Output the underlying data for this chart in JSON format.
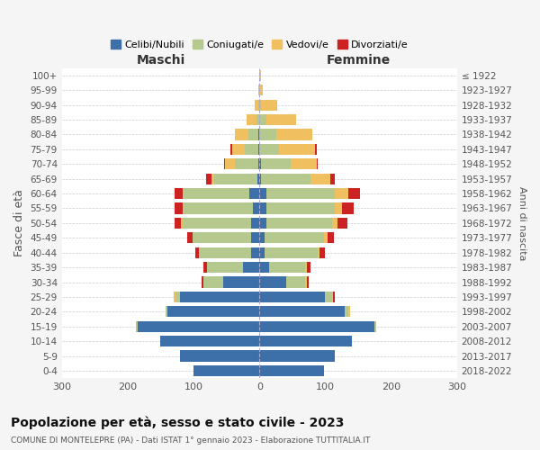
{
  "age_groups": [
    "100+",
    "95-99",
    "90-94",
    "85-89",
    "80-84",
    "75-79",
    "70-74",
    "65-69",
    "60-64",
    "55-59",
    "50-54",
    "45-49",
    "40-44",
    "35-39",
    "30-34",
    "25-29",
    "20-24",
    "15-19",
    "10-14",
    "5-9",
    "0-4"
  ],
  "birth_years": [
    "≤ 1922",
    "1923-1927",
    "1928-1932",
    "1933-1937",
    "1938-1942",
    "1943-1947",
    "1948-1952",
    "1953-1957",
    "1958-1962",
    "1963-1967",
    "1968-1972",
    "1973-1977",
    "1978-1982",
    "1983-1987",
    "1988-1992",
    "1993-1997",
    "1998-2002",
    "2003-2007",
    "2008-2012",
    "2013-2017",
    "2018-2022"
  ],
  "maschi": {
    "celibi": [
      0,
      0,
      0,
      0,
      2,
      2,
      2,
      3,
      15,
      10,
      12,
      12,
      12,
      25,
      55,
      120,
      140,
      185,
      150,
      120,
      100
    ],
    "coniugati": [
      0,
      0,
      2,
      5,
      15,
      20,
      35,
      65,
      100,
      105,
      105,
      90,
      80,
      55,
      30,
      8,
      3,
      2,
      0,
      0,
      0
    ],
    "vedovi": [
      0,
      2,
      5,
      15,
      20,
      20,
      15,
      5,
      2,
      2,
      2,
      0,
      0,
      0,
      0,
      2,
      0,
      0,
      0,
      0,
      0
    ],
    "divorziati": [
      0,
      0,
      0,
      0,
      0,
      2,
      2,
      8,
      12,
      12,
      10,
      8,
      5,
      5,
      3,
      0,
      0,
      0,
      0,
      0,
      0
    ]
  },
  "femmine": {
    "nubili": [
      0,
      0,
      0,
      0,
      0,
      0,
      2,
      2,
      10,
      10,
      10,
      8,
      8,
      15,
      40,
      100,
      130,
      175,
      140,
      115,
      98
    ],
    "coniugate": [
      0,
      0,
      2,
      10,
      25,
      30,
      45,
      75,
      105,
      105,
      100,
      90,
      80,
      55,
      30,
      10,
      5,
      2,
      0,
      0,
      0
    ],
    "vedove": [
      2,
      5,
      25,
      45,
      55,
      55,
      40,
      30,
      20,
      10,
      8,
      5,
      3,
      2,
      2,
      2,
      2,
      0,
      0,
      0,
      0
    ],
    "divorziate": [
      0,
      0,
      0,
      0,
      0,
      2,
      2,
      8,
      18,
      18,
      15,
      10,
      8,
      5,
      3,
      2,
      0,
      0,
      0,
      0,
      0
    ]
  },
  "colors": {
    "celibi": "#3d6fa8",
    "coniugati": "#b5c98e",
    "vedovi": "#f0c060",
    "divorziati": "#cc2222"
  },
  "legend_labels": [
    "Celibi/Nubili",
    "Coniugati/e",
    "Vedovi/e",
    "Divorziati/e"
  ],
  "xlabel_left": "Maschi",
  "xlabel_right": "Femmine",
  "ylabel_left": "Fasce di età",
  "ylabel_right": "Anni di nascita",
  "title": "Popolazione per età, sesso e stato civile - 2023",
  "subtitle": "COMUNE DI MONTELEPRE (PA) - Dati ISTAT 1° gennaio 2023 - Elaborazione TUTTITALIA.IT",
  "xlim": 300,
  "background_color": "#f5f5f5",
  "plot_bg": "#ffffff"
}
